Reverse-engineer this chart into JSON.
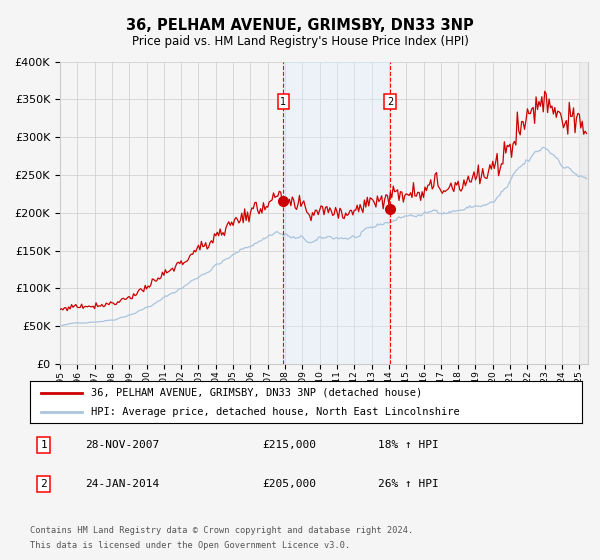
{
  "title": "36, PELHAM AVENUE, GRIMSBY, DN33 3NP",
  "subtitle": "Price paid vs. HM Land Registry's House Price Index (HPI)",
  "legend_line1": "36, PELHAM AVENUE, GRIMSBY, DN33 3NP (detached house)",
  "legend_line2": "HPI: Average price, detached house, North East Lincolnshire",
  "table_row1": [
    "1",
    "28-NOV-2007",
    "£215,000",
    "18% ↑ HPI"
  ],
  "table_row2": [
    "2",
    "24-JAN-2014",
    "£205,000",
    "26% ↑ HPI"
  ],
  "footnote1": "Contains HM Land Registry data © Crown copyright and database right 2024.",
  "footnote2": "This data is licensed under the Open Government Licence v3.0.",
  "sale1_date": 2007.91,
  "sale1_price": 215000,
  "sale2_date": 2014.07,
  "sale2_price": 205000,
  "hpi_color": "#aac4de",
  "property_color": "#cc0000",
  "background_color": "#f5f5f5",
  "grid_color": "#cccccc",
  "shade_color": "#ddeeff",
  "ylim": [
    0,
    400000
  ],
  "xlim_start": 1995.0,
  "xlim_end": 2025.5
}
